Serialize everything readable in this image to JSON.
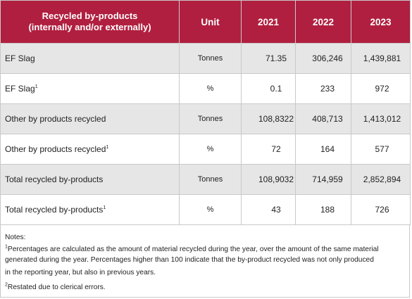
{
  "table": {
    "headers": {
      "col1_line1": "Recycled by-products",
      "col1_line2": "(internally and/or externally)",
      "unit": "Unit",
      "y2021": "2021",
      "y2022": "2022",
      "y2023": "2023"
    },
    "rows": [
      {
        "label": "EF Slag",
        "sup": "",
        "unit": "Tonnes",
        "v2021": "71.35",
        "v2022": "306,246",
        "v2023": "1,439,881"
      },
      {
        "label": "EF Slag",
        "sup": "1",
        "unit": "%",
        "v2021": "0.1",
        "v2022": "233",
        "v2023": "972"
      },
      {
        "label": "Other by products recycled",
        "sup": "",
        "unit": "Tonnes",
        "v2021": "108,8322",
        "v2022": "408,713",
        "v2023": "1,413,012"
      },
      {
        "label": "Other by products recycled",
        "sup": "1",
        "unit": "%",
        "v2021": "72",
        "v2022": "164",
        "v2023": "577"
      },
      {
        "label": "Total recycled by-products",
        "sup": "",
        "unit": "Tonnes",
        "v2021": "108,9032",
        "v2022": "714,959",
        "v2023": "2,852,894"
      },
      {
        "label": "Total recycled by-products",
        "sup": "1",
        "unit": "%",
        "v2021": "43",
        "v2022": "188",
        "v2023": "726"
      }
    ]
  },
  "notes": {
    "title": "Notes:",
    "note1_sup": "1",
    "note1_line1": "Percentages are calculated as the amount of material recycled during the year, over the amount of the same material generated during the year. Percentages higher than 100 indicate that the by-product recycled was not only produced",
    "note1_line2": "in the reporting year, but also in previous years.",
    "note2_sup": "2",
    "note2_text": "Restated due to clerical errors."
  },
  "colors": {
    "header_bg": "#b01f3f",
    "shaded_row": "#e6e6e6",
    "border": "#c9c9c9"
  }
}
